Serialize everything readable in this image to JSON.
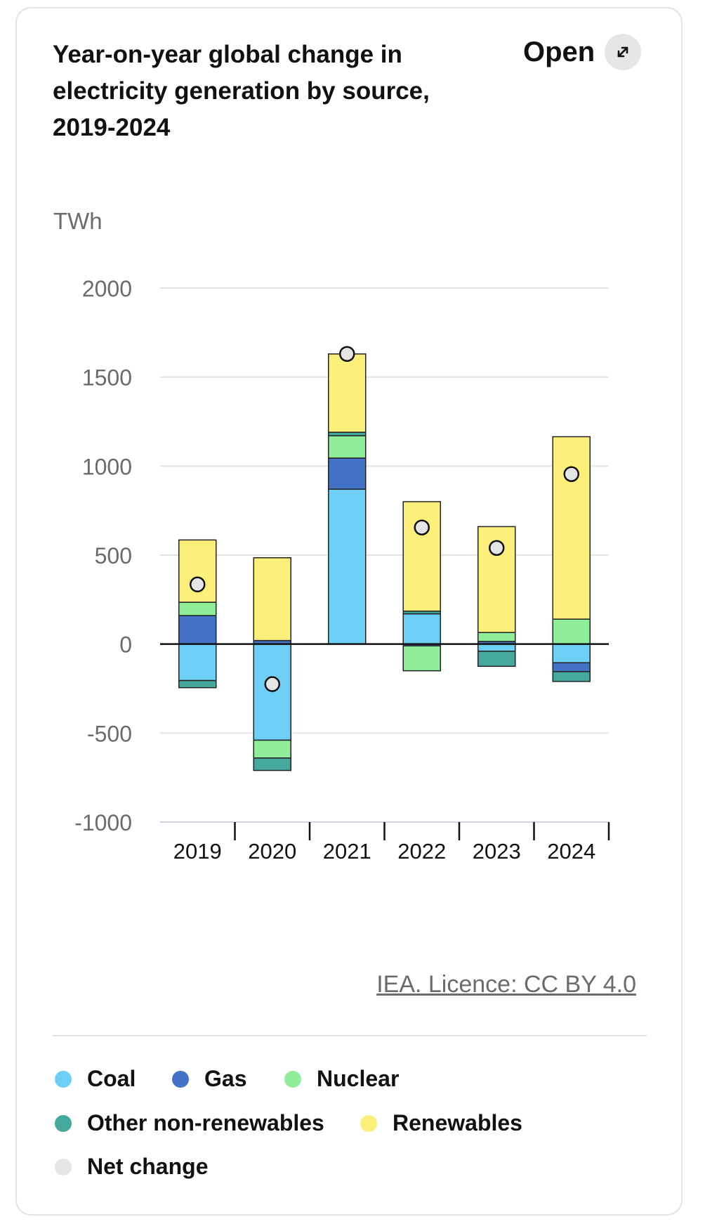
{
  "header": {
    "title": "Year-on-year global change in electricity generation by source, 2019-2024",
    "open_label": "Open",
    "open_icon": "expand-arrows-icon"
  },
  "source": "IEA. Licence: CC BY 4.0",
  "legend": [
    {
      "label": "Coal",
      "color": "#6ecff6"
    },
    {
      "label": "Gas",
      "color": "#4472c4"
    },
    {
      "label": "Nuclear",
      "color": "#90ee9a"
    },
    {
      "label": "Other non-renewables",
      "color": "#45a89c"
    },
    {
      "label": "Renewables",
      "color": "#fdf07a"
    },
    {
      "label": "Net change",
      "color": "#e5e5e5"
    }
  ],
  "chart_data": {
    "type": "bar",
    "stacked": true,
    "title": "Year-on-year global change in electricity generation by source, 2019-2024",
    "ylabel": "TWh",
    "ylim": [
      -1000,
      2000
    ],
    "yticks": [
      2000,
      1500,
      1000,
      500,
      0,
      -500,
      -1000
    ],
    "categories": [
      "2019",
      "2020",
      "2021",
      "2022",
      "2023",
      "2024"
    ],
    "series": [
      {
        "name": "Coal",
        "color": "#6ecff6",
        "values": [
          -205,
          -540,
          870,
          170,
          -40,
          -105
        ]
      },
      {
        "name": "Gas",
        "color": "#4472c4",
        "values": [
          160,
          20,
          175,
          -10,
          15,
          -50
        ]
      },
      {
        "name": "Nuclear",
        "color": "#90ee9a",
        "values": [
          75,
          -100,
          125,
          -140,
          50,
          140
        ]
      },
      {
        "name": "Other non-renewables",
        "color": "#45a89c",
        "values": [
          -40,
          -70,
          20,
          15,
          -85,
          -55
        ]
      },
      {
        "name": "Renewables",
        "color": "#fdf07a",
        "values": [
          350,
          465,
          440,
          615,
          595,
          1025
        ]
      }
    ],
    "net_change": {
      "name": "Net change",
      "color": "#e5e5e5",
      "values": [
        335,
        -225,
        1630,
        655,
        540,
        955
      ]
    },
    "legend_position": "bottom",
    "grid": true
  }
}
